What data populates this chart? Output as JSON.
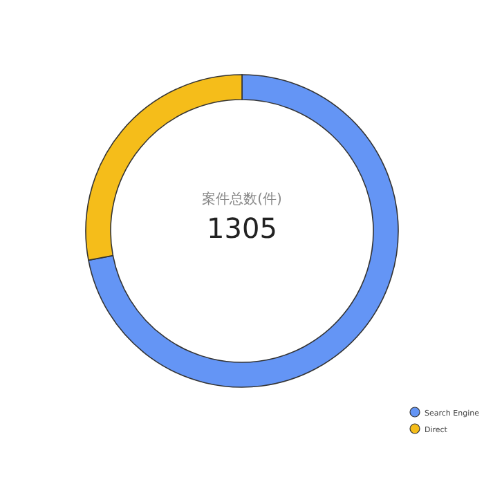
{
  "chart_data": {
    "type": "donut",
    "title": "案件总数(件)",
    "subtitle": "1305",
    "categories": [
      "Search Engine",
      "Direct"
    ],
    "values": [
      72,
      28
    ],
    "colors": [
      "#6495f5",
      "#f5bd1a"
    ],
    "legend": "bottom right"
  }
}
